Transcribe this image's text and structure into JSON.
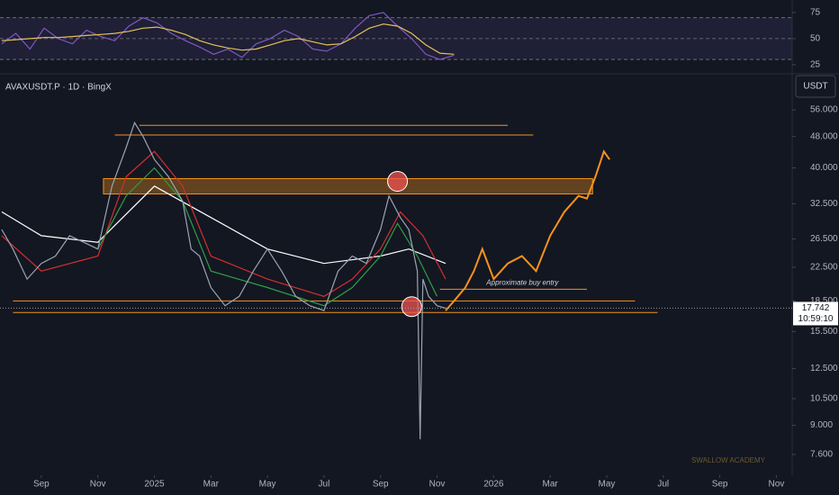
{
  "header": {
    "symbol": "AVAXUSDT.P · 1D · BingX",
    "currency": "USDT"
  },
  "price_tag": {
    "countdown": "10:59:10"
  },
  "watermark": "SWALLOW ACADEMY",
  "chart_data": [
    {
      "type": "line",
      "ylim": [
        18,
        87
      ],
      "yticks": [
        25,
        50,
        75
      ],
      "levels": [
        30,
        50,
        70
      ],
      "band": [
        30,
        70
      ],
      "xlim": [
        -1.46,
        26.56
      ],
      "series": [
        {
          "color": "#7e57c2",
          "x": [
            -1.4,
            -0.9,
            -0.4,
            0.1,
            0.6,
            1.1,
            1.6,
            2.1,
            2.6,
            3.1,
            3.6,
            4.1,
            4.6,
            5.1,
            5.6,
            6.1,
            6.6,
            7.1,
            7.6,
            8.1,
            8.6,
            9.1,
            9.6,
            10.1,
            10.6,
            11.1,
            11.6,
            12.1,
            12.6,
            13.1,
            13.6,
            14.1,
            14.6
          ],
          "values": [
            45,
            55,
            40,
            60,
            50,
            45,
            58,
            52,
            48,
            62,
            70,
            65,
            55,
            48,
            42,
            35,
            40,
            32,
            45,
            50,
            58,
            52,
            40,
            38,
            45,
            60,
            72,
            75,
            62,
            50,
            35,
            30,
            34
          ]
        },
        {
          "color": "#e6c15a",
          "x": [
            -1.4,
            -0.9,
            -0.4,
            0.1,
            0.6,
            1.1,
            1.6,
            2.1,
            2.6,
            3.1,
            3.6,
            4.1,
            4.6,
            5.1,
            5.6,
            6.1,
            6.6,
            7.1,
            7.6,
            8.1,
            8.6,
            9.1,
            9.6,
            10.1,
            10.6,
            11.1,
            11.6,
            12.1,
            12.6,
            13.1,
            13.6,
            14.1,
            14.6
          ],
          "values": [
            48,
            49,
            50,
            51,
            51,
            52,
            53,
            54,
            55,
            57,
            60,
            61,
            58,
            54,
            48,
            44,
            41,
            39,
            40,
            44,
            48,
            50,
            47,
            44,
            45,
            52,
            60,
            64,
            62,
            55,
            44,
            36,
            35
          ]
        }
      ]
    },
    {
      "type": "line",
      "log_scale": true,
      "ylim": [
        6.74,
        68.3
      ],
      "xlim": [
        -1.46,
        26.56
      ],
      "yticks": [
        {
          "value": 7.6,
          "label": "7.600"
        },
        {
          "value": 9,
          "label": "9.000"
        },
        {
          "value": 10.5,
          "label": "10.500"
        },
        {
          "value": 12.5,
          "label": "12.500"
        },
        {
          "value": 15.5,
          "label": "15.500"
        },
        {
          "value": 18.5,
          "label": "18.500"
        },
        {
          "value": 22.5,
          "label": "22.500"
        },
        {
          "value": 26.5,
          "label": "26.500"
        },
        {
          "value": 32.5,
          "label": "32.500"
        },
        {
          "value": 40,
          "label": "40.000"
        },
        {
          "value": 48,
          "label": "48.000"
        },
        {
          "value": 56,
          "label": "56.000"
        }
      ],
      "xticks": [
        {
          "value": 0,
          "label": "Sep"
        },
        {
          "value": 2,
          "label": "Nov"
        },
        {
          "value": 4,
          "label": "2025"
        },
        {
          "value": 6,
          "label": "Mar"
        },
        {
          "value": 8,
          "label": "May"
        },
        {
          "value": 10,
          "label": "Jul"
        },
        {
          "value": 12,
          "label": "Sep"
        },
        {
          "value": 14,
          "label": "Nov"
        },
        {
          "value": 16,
          "label": "2026"
        },
        {
          "value": 18,
          "label": "Mar"
        },
        {
          "value": 20,
          "label": "May"
        },
        {
          "value": 22,
          "label": "Jul"
        },
        {
          "value": 24,
          "label": "Sep"
        },
        {
          "value": 26,
          "label": "Nov"
        }
      ],
      "last_price": 17.742,
      "series": [
        {
          "color": "#ffffff",
          "x": [
            -1.4,
            0,
            2,
            4,
            6,
            8,
            10,
            12,
            13,
            14.3
          ],
          "values": [
            31,
            27,
            26,
            36,
            30,
            25,
            23,
            24,
            25,
            23
          ]
        },
        {
          "color": "#d32f2f",
          "x": [
            -1.4,
            0,
            2,
            3,
            4,
            5,
            6,
            8,
            10,
            11,
            12,
            12.7,
            13.5,
            14.3
          ],
          "values": [
            27,
            22,
            24,
            38,
            44,
            36,
            24,
            21,
            19,
            21,
            25,
            31,
            27,
            21
          ]
        },
        {
          "color": "#2e9e44",
          "x": [
            2,
            3,
            4,
            5,
            6,
            8,
            10,
            11,
            12,
            12.6,
            13.3,
            14
          ],
          "values": [
            25,
            34,
            40,
            33,
            22,
            20,
            18,
            20,
            24,
            29,
            24,
            19
          ]
        },
        {
          "color": "#9aa4b1",
          "x": [
            -1.4,
            -1,
            -0.5,
            0,
            0.5,
            1,
            1.5,
            2,
            2.5,
            3,
            3.3,
            3.6,
            4,
            4.5,
            5,
            5.3,
            5.6,
            6,
            6.5,
            7,
            7.5,
            8,
            8.5,
            9,
            9.5,
            10,
            10.5,
            11,
            11.5,
            12,
            12.3,
            12.7,
            13,
            13.3,
            13.4,
            13.5,
            13.7,
            14,
            14.3
          ],
          "values": [
            28,
            25,
            21,
            23,
            24,
            27,
            26,
            25,
            36,
            45,
            52,
            48,
            42,
            38,
            33,
            25,
            24,
            20,
            18,
            19,
            22,
            25,
            22,
            19,
            18,
            17.5,
            22,
            24,
            23,
            28,
            34,
            30,
            28,
            22,
            8.3,
            21,
            19,
            18,
            17.742
          ]
        },
        {
          "color": "#f7931a",
          "x": [
            14.3,
            14.6,
            15,
            15.3,
            15.6,
            16,
            16.5,
            17,
            17.5,
            18,
            18.5,
            19,
            19.3,
            19.6,
            19.9,
            20.1
          ],
          "values": [
            17.5,
            18.5,
            20,
            22,
            25,
            21,
            23,
            24,
            22,
            27,
            31,
            34,
            33.5,
            38,
            44,
            42
          ]
        }
      ],
      "levels": [
        {
          "value": 51.2,
          "x": [
            3.47,
            16.5
          ]
        },
        {
          "value": 48.4,
          "x": [
            2.6,
            17.4
          ]
        },
        {
          "value": 18.5,
          "x": [
            -1,
            21
          ]
        },
        {
          "value": 17.3,
          "x": [
            -1,
            21.8
          ]
        }
      ],
      "zone": {
        "range": [
          34.4,
          37.6
        ],
        "x": [
          2.2,
          19.5
        ]
      },
      "annotation": {
        "text": "Approximate buy entry",
        "value": 19.8,
        "x": [
          14.1,
          19.3
        ]
      },
      "circles": [
        {
          "x": 12.6,
          "value": 37
        },
        {
          "x": 13.1,
          "value": 17.9
        }
      ]
    }
  ]
}
